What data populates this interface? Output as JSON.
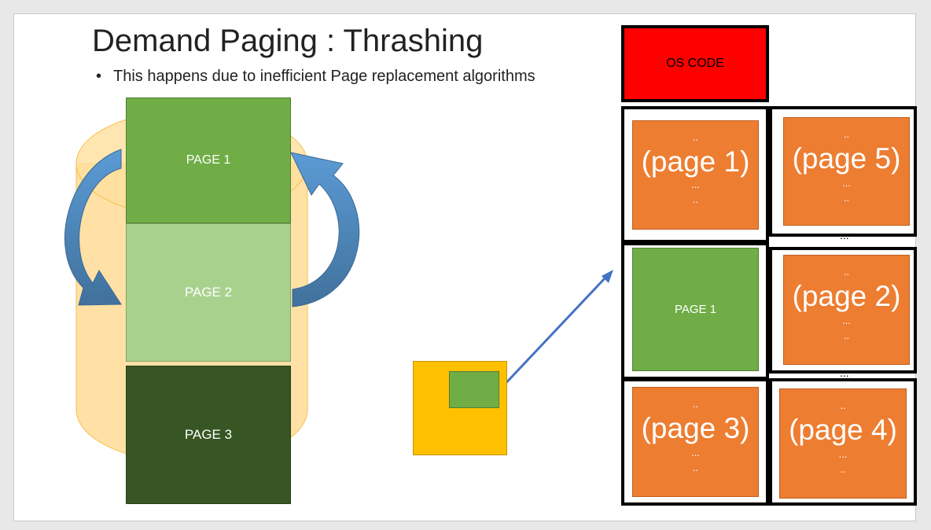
{
  "slide": {
    "title": "Demand Paging : Thrashing",
    "bullet": "This happens due to inefficient Page replacement algorithms"
  },
  "disk": {
    "pages": [
      {
        "label": "PAGE 1",
        "color": "#70ad47"
      },
      {
        "label": "PAGE 2",
        "color": "#a9d18e"
      },
      {
        "label": "PAGE 3",
        "color": "#375623"
      }
    ]
  },
  "memory": {
    "os_code": "OS CODE",
    "frame_pages": {
      "page1": "(page 1)",
      "page5": "(page 5)",
      "page2": "(page 2)",
      "page3": "(page 3)",
      "page4": "(page 4)",
      "loaded": "PAGE 1"
    },
    "dots_two": "..",
    "dots_three": "...",
    "dots_between": "..."
  },
  "colors": {
    "os_code": "#ff0000",
    "frame_fill": "#ed7d31",
    "loaded_green": "#70ad47",
    "process_box": "#ffc000",
    "cylinder": "#ffd990",
    "arrow_blue": "#4472c4"
  }
}
